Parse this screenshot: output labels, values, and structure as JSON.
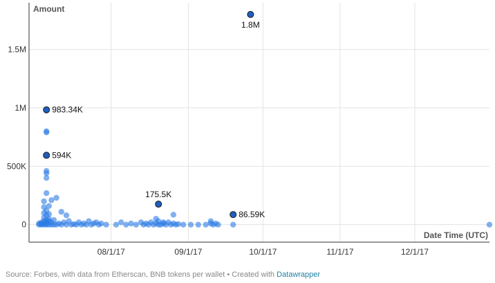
{
  "chart_data": {
    "type": "scatter",
    "ylabel": "Amount",
    "xlabel": "Date Time (UTC)",
    "ylim": [
      -150000,
      1900000
    ],
    "xlim": [
      "2017-06-29",
      "2017-12-31"
    ],
    "y_ticks": [
      {
        "value": 0,
        "label": "0"
      },
      {
        "value": 500000,
        "label": "500K"
      },
      {
        "value": 1000000,
        "label": "1M"
      },
      {
        "value": 1500000,
        "label": "1.5M"
      }
    ],
    "x_ticks": [
      {
        "value": "2017-08-01",
        "label": "08/1/17"
      },
      {
        "value": "2017-09-01",
        "label": "09/1/17"
      },
      {
        "value": "2017-10-01",
        "label": "10/1/17"
      },
      {
        "value": "2017-11-01",
        "label": "11/1/17"
      },
      {
        "value": "2017-12-01",
        "label": "12/1/17"
      }
    ],
    "grid": true,
    "point_color": "#2c7be5",
    "highlight_color": "#1f5fbf",
    "points": [
      {
        "x": "2017-07-03",
        "y": 0
      },
      {
        "x": "2017-07-03",
        "y": 10000
      },
      {
        "x": "2017-07-04",
        "y": 0
      },
      {
        "x": "2017-07-04",
        "y": 20000
      },
      {
        "x": "2017-07-04",
        "y": 5000
      },
      {
        "x": "2017-07-05",
        "y": 0
      },
      {
        "x": "2017-07-05",
        "y": 30000
      },
      {
        "x": "2017-07-05",
        "y": 60000
      },
      {
        "x": "2017-07-05",
        "y": 100000
      },
      {
        "x": "2017-07-05",
        "y": 150000
      },
      {
        "x": "2017-07-05",
        "y": 200000
      },
      {
        "x": "2017-07-05",
        "y": 12000
      },
      {
        "x": "2017-07-06",
        "y": 0
      },
      {
        "x": "2017-07-06",
        "y": 40000
      },
      {
        "x": "2017-07-06",
        "y": 80000
      },
      {
        "x": "2017-07-06",
        "y": 120000
      },
      {
        "x": "2017-07-06",
        "y": 270000
      },
      {
        "x": "2017-07-06",
        "y": 400000
      },
      {
        "x": "2017-07-06",
        "y": 440000
      },
      {
        "x": "2017-07-06",
        "y": 460000
      },
      {
        "x": "2017-07-06",
        "y": 790000
      },
      {
        "x": "2017-07-06",
        "y": 800000
      },
      {
        "x": "2017-07-06",
        "y": 25000
      },
      {
        "x": "2017-07-06",
        "y": 8000
      },
      {
        "x": "2017-07-07",
        "y": 0
      },
      {
        "x": "2017-07-07",
        "y": 50000
      },
      {
        "x": "2017-07-07",
        "y": 90000
      },
      {
        "x": "2017-07-07",
        "y": 160000
      },
      {
        "x": "2017-07-07",
        "y": 30000
      },
      {
        "x": "2017-07-08",
        "y": 0
      },
      {
        "x": "2017-07-08",
        "y": 210000
      },
      {
        "x": "2017-07-08",
        "y": 20000
      },
      {
        "x": "2017-07-09",
        "y": 0
      },
      {
        "x": "2017-07-09",
        "y": 40000
      },
      {
        "x": "2017-07-10",
        "y": 230000
      },
      {
        "x": "2017-07-10",
        "y": 0
      },
      {
        "x": "2017-07-11",
        "y": 10000
      },
      {
        "x": "2017-07-12",
        "y": 110000
      },
      {
        "x": "2017-07-12",
        "y": 0
      },
      {
        "x": "2017-07-13",
        "y": 20000
      },
      {
        "x": "2017-07-14",
        "y": 80000
      },
      {
        "x": "2017-07-14",
        "y": 0
      },
      {
        "x": "2017-07-15",
        "y": 30000
      },
      {
        "x": "2017-07-16",
        "y": 0
      },
      {
        "x": "2017-07-17",
        "y": 5000
      },
      {
        "x": "2017-07-18",
        "y": 0
      },
      {
        "x": "2017-07-19",
        "y": 20000
      },
      {
        "x": "2017-07-20",
        "y": 0
      },
      {
        "x": "2017-07-21",
        "y": 10000
      },
      {
        "x": "2017-07-22",
        "y": 0
      },
      {
        "x": "2017-07-23",
        "y": 30000
      },
      {
        "x": "2017-07-24",
        "y": 0
      },
      {
        "x": "2017-07-25",
        "y": 10000
      },
      {
        "x": "2017-07-26",
        "y": 20000
      },
      {
        "x": "2017-07-27",
        "y": 0
      },
      {
        "x": "2017-07-28",
        "y": 10000
      },
      {
        "x": "2017-07-30",
        "y": 0
      },
      {
        "x": "2017-08-03",
        "y": 0
      },
      {
        "x": "2017-08-05",
        "y": 20000
      },
      {
        "x": "2017-08-07",
        "y": 0
      },
      {
        "x": "2017-08-09",
        "y": 10000
      },
      {
        "x": "2017-08-11",
        "y": 0
      },
      {
        "x": "2017-08-13",
        "y": 20000
      },
      {
        "x": "2017-08-14",
        "y": 0
      },
      {
        "x": "2017-08-15",
        "y": 10000
      },
      {
        "x": "2017-08-16",
        "y": 0
      },
      {
        "x": "2017-08-17",
        "y": 20000
      },
      {
        "x": "2017-08-18",
        "y": 0
      },
      {
        "x": "2017-08-19",
        "y": 50000
      },
      {
        "x": "2017-08-19",
        "y": 10000
      },
      {
        "x": "2017-08-20",
        "y": 0
      },
      {
        "x": "2017-08-20",
        "y": 30000
      },
      {
        "x": "2017-08-21",
        "y": 0
      },
      {
        "x": "2017-08-22",
        "y": 10000
      },
      {
        "x": "2017-08-22",
        "y": 20000
      },
      {
        "x": "2017-08-23",
        "y": 0
      },
      {
        "x": "2017-08-24",
        "y": 20000
      },
      {
        "x": "2017-08-25",
        "y": 0
      },
      {
        "x": "2017-08-26",
        "y": 85000
      },
      {
        "x": "2017-08-26",
        "y": 10000
      },
      {
        "x": "2017-08-27",
        "y": 0
      },
      {
        "x": "2017-08-28",
        "y": 5000
      },
      {
        "x": "2017-08-30",
        "y": 0
      },
      {
        "x": "2017-09-02",
        "y": 0
      },
      {
        "x": "2017-09-05",
        "y": 0
      },
      {
        "x": "2017-09-08",
        "y": 0
      },
      {
        "x": "2017-09-10",
        "y": 30000
      },
      {
        "x": "2017-09-10",
        "y": 10000
      },
      {
        "x": "2017-09-11",
        "y": 0
      },
      {
        "x": "2017-09-12",
        "y": 10000
      },
      {
        "x": "2017-09-13",
        "y": 0
      },
      {
        "x": "2017-09-19",
        "y": 0
      },
      {
        "x": "2017-12-31",
        "y": 0
      }
    ],
    "annotations": [
      {
        "x": "2017-07-06",
        "y": 983340,
        "label": "983.34K",
        "position": "right"
      },
      {
        "x": "2017-07-06",
        "y": 594000,
        "label": "594K",
        "position": "right"
      },
      {
        "x": "2017-08-20",
        "y": 175500,
        "label": "175.5K",
        "position": "above"
      },
      {
        "x": "2017-09-19",
        "y": 86590,
        "label": "86.59K",
        "position": "right"
      },
      {
        "x": "2017-09-26",
        "y": 1800000,
        "label": "1.8M",
        "position": "below"
      }
    ]
  },
  "footer": {
    "source_text": "Source: Forbes, with data from Etherscan, BNB tokens per wallet • Created with ",
    "link_text": "Datawrapper"
  }
}
